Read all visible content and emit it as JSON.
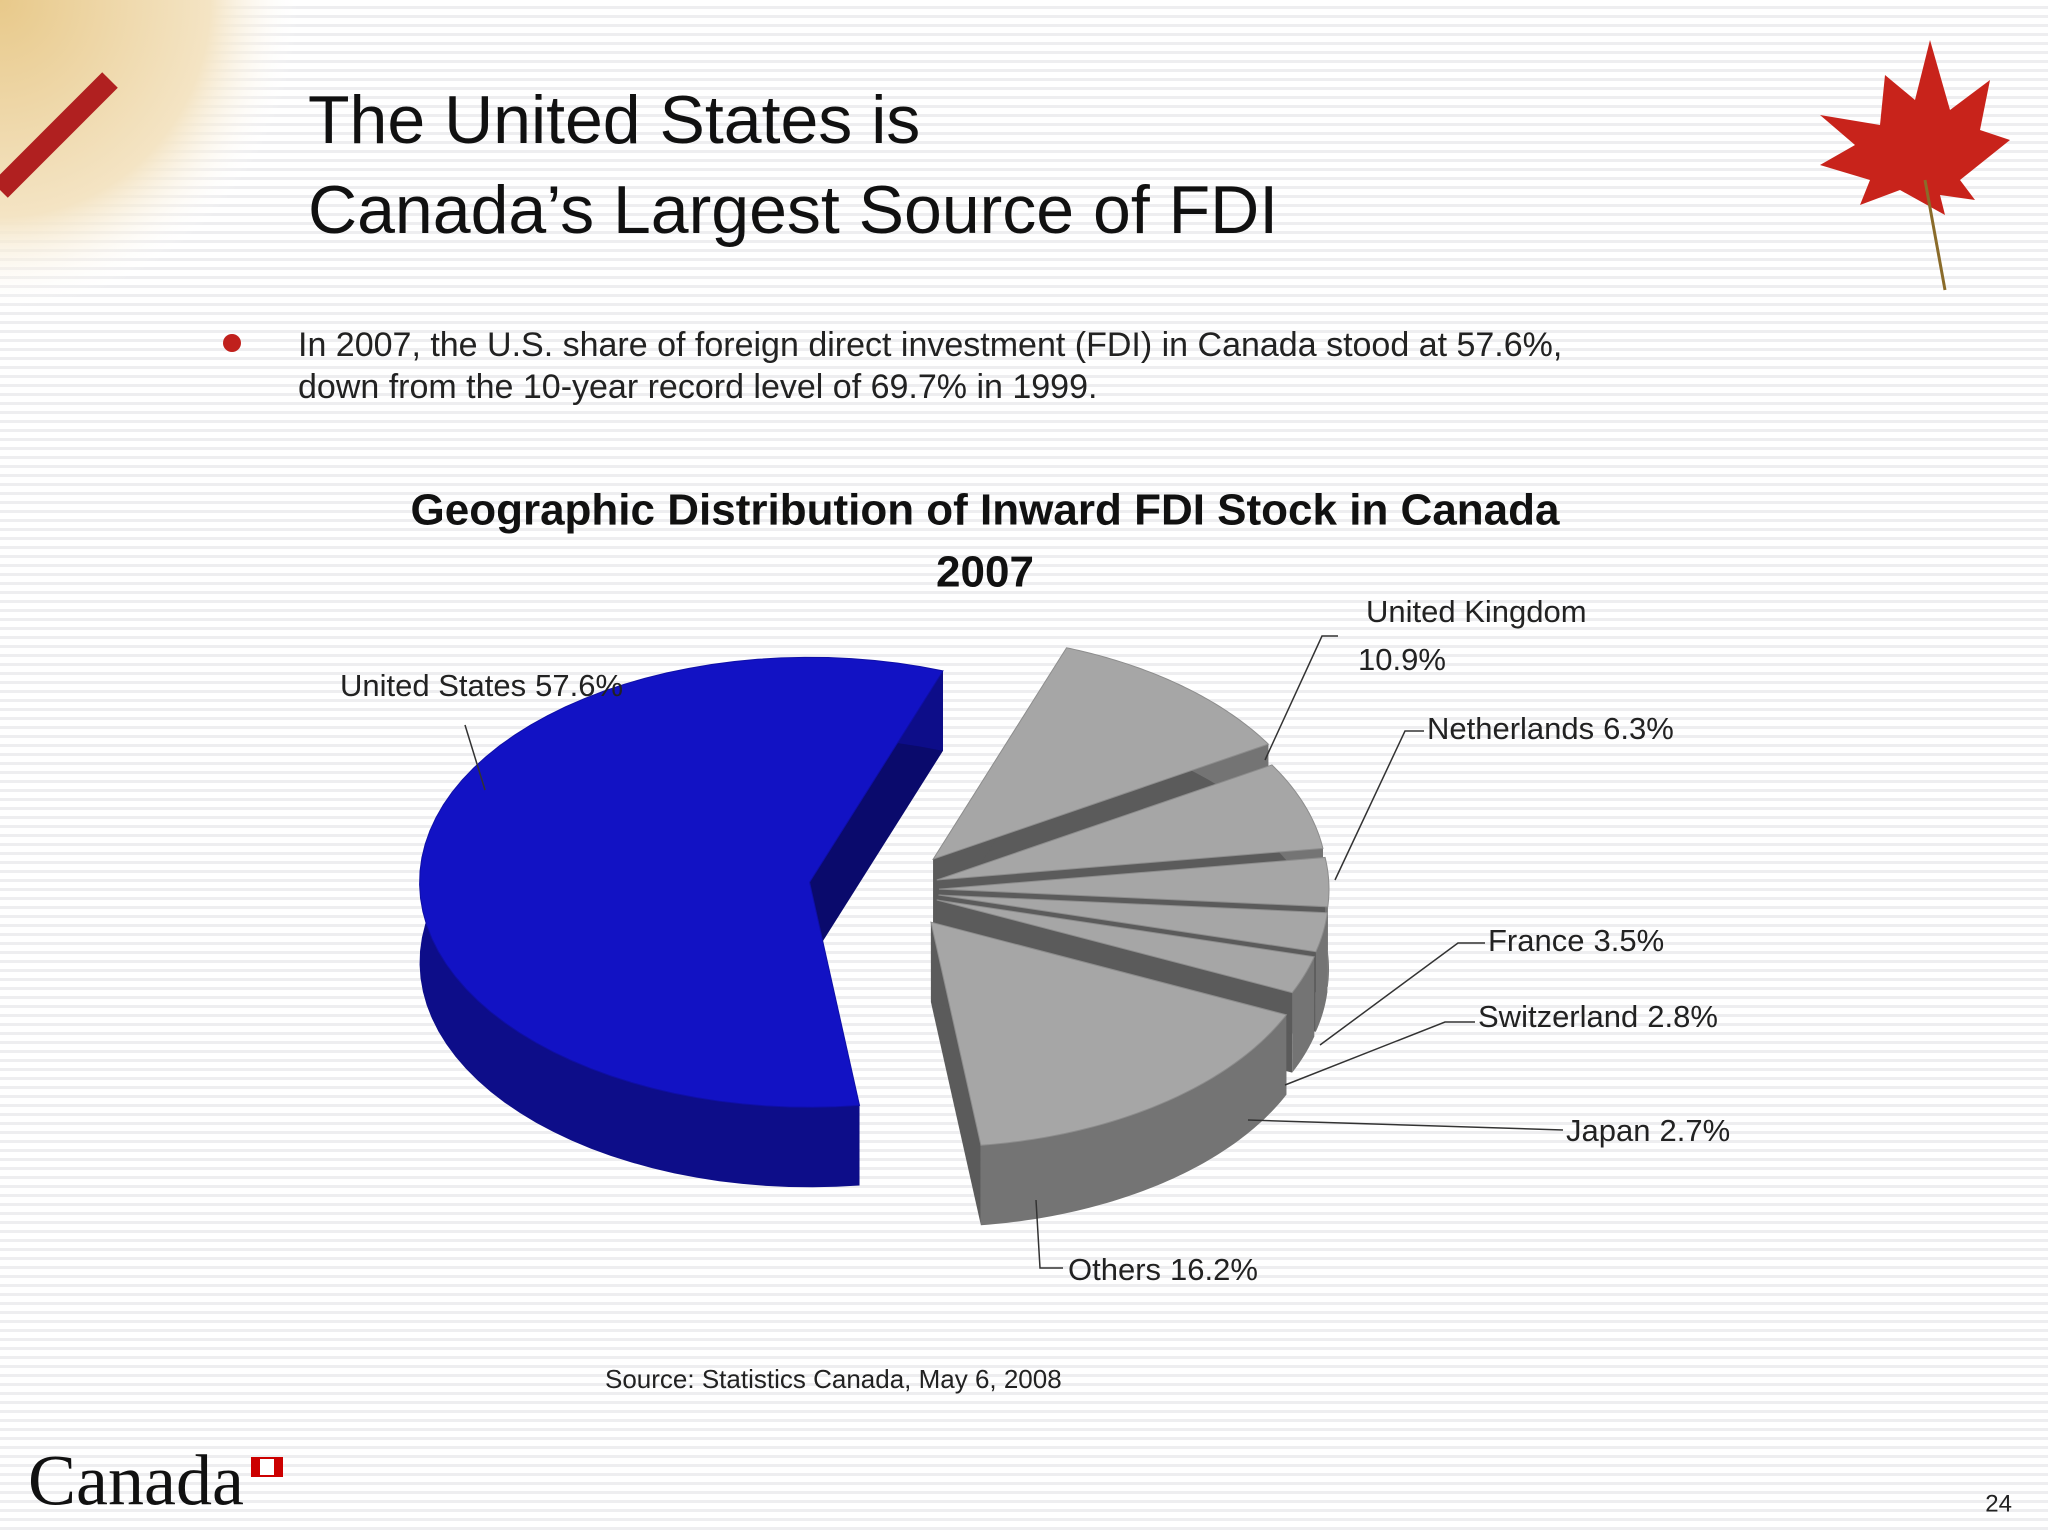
{
  "title": [
    "The United States is",
    "Canada’s Largest Source of FDI"
  ],
  "bullet": [
    "In 2007, the U.S. share of foreign direct investment (FDI) in Canada stood at 57.6%,",
    "down from the 10-year record level of 69.7% in 1999."
  ],
  "chart_data": {
    "type": "pie",
    "title": [
      "Geographic Distribution of Inward FDI Stock in Canada",
      "2007"
    ],
    "categories": [
      "United States",
      "Others",
      "Japan",
      "Switzerland",
      "France",
      "Netherlands",
      "United Kingdom"
    ],
    "values": [
      57.6,
      16.2,
      2.7,
      2.8,
      3.5,
      6.3,
      10.9
    ],
    "value_labels": [
      "57.6%",
      "16.2%",
      "2.7%",
      "2.8%",
      "3.5%",
      "6.3%",
      "10.9%"
    ],
    "colors": [
      "#1212c4",
      "#a6a6a6",
      "#a6a6a6",
      "#a6a6a6",
      "#a6a6a6",
      "#a6a6a6",
      "#a6a6a6"
    ]
  },
  "source": "Source: Statistics Canada, May 6, 2008",
  "logo": "Canada",
  "page_number": "24"
}
